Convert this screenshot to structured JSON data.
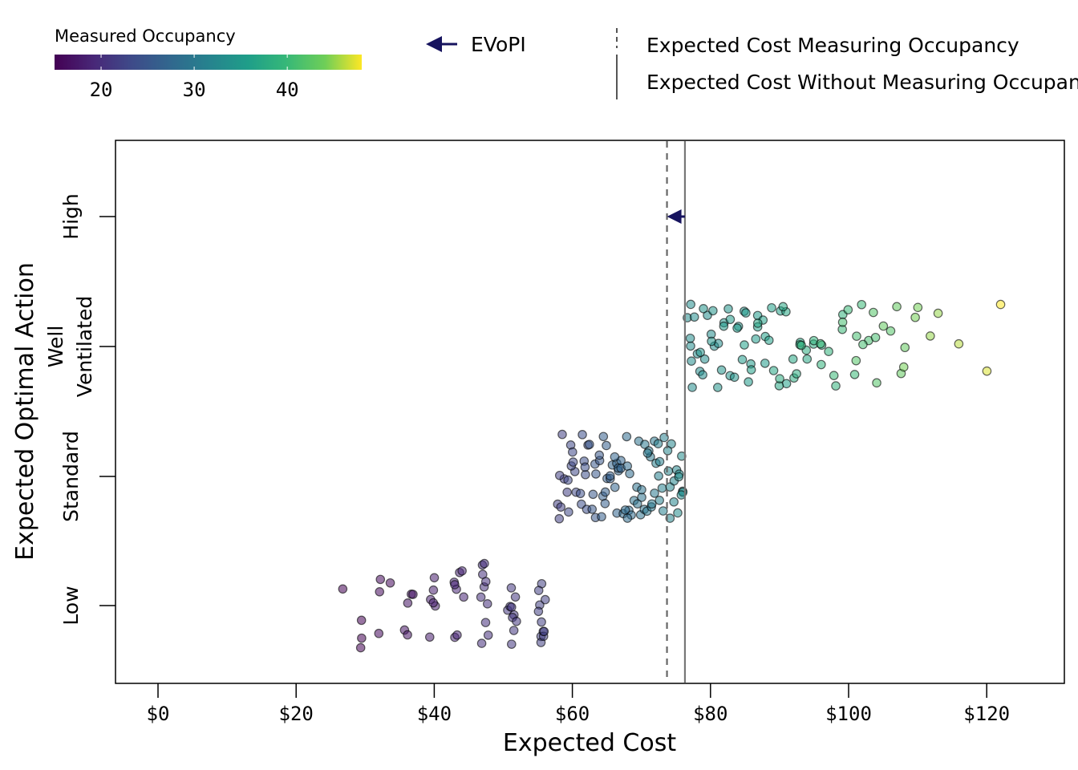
{
  "chart_data": {
    "type": "scatter",
    "xlabel": "Expected Cost",
    "ylabel": "Expected Optimal Action",
    "xlim": [
      -6,
      131
    ],
    "x_ticks": [
      0,
      20,
      40,
      60,
      80,
      100,
      120
    ],
    "x_tick_labels": [
      "$0",
      "$20",
      "$40",
      "$60",
      "$80",
      "$100",
      "$120"
    ],
    "categories": [
      "High",
      "Well Ventilated",
      "Standard",
      "Low"
    ],
    "category_labels": [
      [
        "High"
      ],
      [
        "Well",
        "Ventilated"
      ],
      [
        "Standard"
      ],
      [
        "Low"
      ]
    ],
    "grid": false,
    "color_scale": {
      "title": "Measured Occupancy",
      "palette": "viridis",
      "range": [
        15,
        48
      ],
      "ticks": [
        20,
        30,
        40
      ],
      "tick_labels": [
        "20",
        "30",
        "40"
      ]
    },
    "reference_lines": {
      "expected_cost_measuring": {
        "value": 73.7,
        "style": "dashed",
        "label": "Expected Cost Measuring Occupancy"
      },
      "expected_cost_without": {
        "value": 76.3,
        "style": "solid",
        "label": "Expected Cost Without Measuring Occupancy"
      }
    },
    "evopi": {
      "label": "EVoPI",
      "from": 76.3,
      "to": 73.7,
      "category": "High",
      "color": "#16135e"
    },
    "series": [
      {
        "category": "Low",
        "groups": [
          {
            "occ": 14,
            "costs": [
              26.7
            ]
          },
          {
            "occ": 15,
            "costs": [
              29.3,
              29.4,
              29.6
            ]
          },
          {
            "occ": 16,
            "costs": [
              31.9,
              32.0,
              32.1,
              33.6
            ]
          },
          {
            "occ": 17,
            "costs": [
              35.8,
              36.0,
              36.3,
              36.6,
              37.0
            ]
          },
          {
            "occ": 18,
            "costs": [
              39.2,
              39.5,
              39.9,
              40.0,
              40.2,
              39.7
            ]
          },
          {
            "occ": 19,
            "costs": [
              42.8,
              43.0,
              43.1,
              43.3,
              43.6,
              44.0,
              44.2,
              42.9
            ]
          },
          {
            "occ": 20,
            "costs": [
              46.8,
              46.9,
              47.0,
              47.1,
              47.2,
              47.3,
              47.5,
              47.6,
              47.8,
              47.4
            ]
          },
          {
            "occ": 21,
            "costs": [
              50.8,
              51.0,
              51.1,
              51.2,
              51.3,
              51.4,
              51.5,
              51.7,
              51.8,
              51.6
            ]
          },
          {
            "occ": 22,
            "costs": [
              55.1,
              55.2,
              55.4,
              55.5,
              55.6,
              55.7,
              55.8,
              55.9,
              56.0,
              56.1,
              55.3
            ]
          }
        ]
      },
      {
        "category": "Standard",
        "groups": [
          {
            "occ": 22,
            "costs": [
              57.8,
              58.0,
              58.3,
              58.6,
              58.9,
              59.2,
              58.1
            ]
          },
          {
            "occ": 23,
            "costs": [
              59.4,
              59.7,
              60.0,
              60.3,
              60.6,
              59.9,
              60.2,
              59.5
            ]
          },
          {
            "occ": 24,
            "costs": [
              61.0,
              61.3,
              61.6,
              61.9,
              62.2,
              61.5,
              61.8,
              62.4
            ]
          },
          {
            "occ": 25,
            "costs": [
              62.6,
              62.9,
              63.2,
              63.5,
              63.8,
              63.0,
              63.4,
              64.0
            ]
          },
          {
            "occ": 26,
            "costs": [
              64.2,
              64.5,
              64.8,
              65.1,
              65.4,
              64.7,
              65.0,
              64.4,
              65.6
            ]
          },
          {
            "occ": 27,
            "costs": [
              65.8,
              66.1,
              66.4,
              66.7,
              67.0,
              66.3,
              66.6,
              66.0,
              67.2
            ]
          },
          {
            "occ": 28,
            "costs": [
              67.4,
              67.7,
              68.0,
              68.3,
              68.6,
              67.9,
              68.2,
              67.6
            ]
          },
          {
            "occ": 29,
            "costs": [
              69.0,
              69.3,
              69.6,
              69.9,
              70.2,
              69.5,
              69.8,
              70.4
            ]
          },
          {
            "occ": 30,
            "costs": [
              70.6,
              70.9,
              71.2,
              71.5,
              71.8,
              71.0,
              71.4,
              70.8,
              72.0
            ]
          },
          {
            "occ": 31,
            "costs": [
              72.2,
              72.5,
              72.8,
              73.1,
              73.4,
              72.7,
              73.0,
              72.4
            ]
          },
          {
            "occ": 32,
            "costs": [
              73.8,
              74.1,
              74.4,
              74.7,
              75.0,
              74.3,
              74.6,
              73.9
            ]
          },
          {
            "occ": 33,
            "costs": [
              75.2,
              75.5,
              75.8,
              76.0,
              75.4,
              75.7,
              75.9
            ]
          }
        ]
      },
      {
        "category": "Well Ventilated",
        "groups": [
          {
            "occ": 33,
            "costs": [
              76.8,
              77.0,
              77.2,
              77.5,
              78.0,
              78.3,
              78.8,
              79.0,
              79.5,
              80.0,
              80.5,
              81.0,
              77.4,
              77.8,
              76.9
            ]
          },
          {
            "occ": 34,
            "costs": [
              79.0,
              80.0,
              81.0,
              81.5,
              82.0,
              82.5,
              83.0,
              83.5,
              84.0,
              85.0,
              78.5,
              80.3
            ]
          },
          {
            "occ": 35,
            "costs": [
              82.0,
              83.0,
              84.0,
              85.0,
              85.5,
              86.0,
              86.5,
              87.0,
              88.0,
              84.5
            ]
          },
          {
            "occ": 36,
            "costs": [
              85.0,
              86.0,
              87.0,
              88.0,
              88.5,
              89.0,
              90.0,
              91.0,
              87.5
            ]
          },
          {
            "occ": 37,
            "costs": [
              87.0,
              89.0,
              90.0,
              91.0,
              92.0,
              93.0,
              94.0,
              90.5
            ]
          },
          {
            "occ": 38,
            "costs": [
              90.0,
              92.0,
              93.0,
              94.0,
              95.0,
              96.0,
              92.5
            ]
          },
          {
            "occ": 39,
            "costs": [
              93.0,
              95.0,
              97.0,
              98.0,
              99.0,
              96.0
            ]
          },
          {
            "occ": 40,
            "costs": [
              96.0,
              98.0,
              100.0,
              101.0,
              102.0,
              99.0
            ]
          },
          {
            "occ": 41,
            "costs": [
              99.0,
              101.0,
              103.0,
              104.0,
              102.0
            ]
          },
          {
            "occ": 42,
            "costs": [
              101.0,
              104.0,
              106.0,
              103.5
            ]
          },
          {
            "occ": 43,
            "costs": [
              105.0,
              107.0,
              108.0,
              107.5
            ]
          },
          {
            "occ": 44,
            "costs": [
              108.0,
              110.0,
              109.5
            ]
          },
          {
            "occ": 45,
            "costs": [
              112.0,
              113.0
            ]
          },
          {
            "occ": 46,
            "costs": [
              116.0
            ]
          },
          {
            "occ": 47,
            "costs": [
              120.0
            ]
          },
          {
            "occ": 48,
            "costs": [
              122.0
            ]
          }
        ]
      }
    ]
  }
}
